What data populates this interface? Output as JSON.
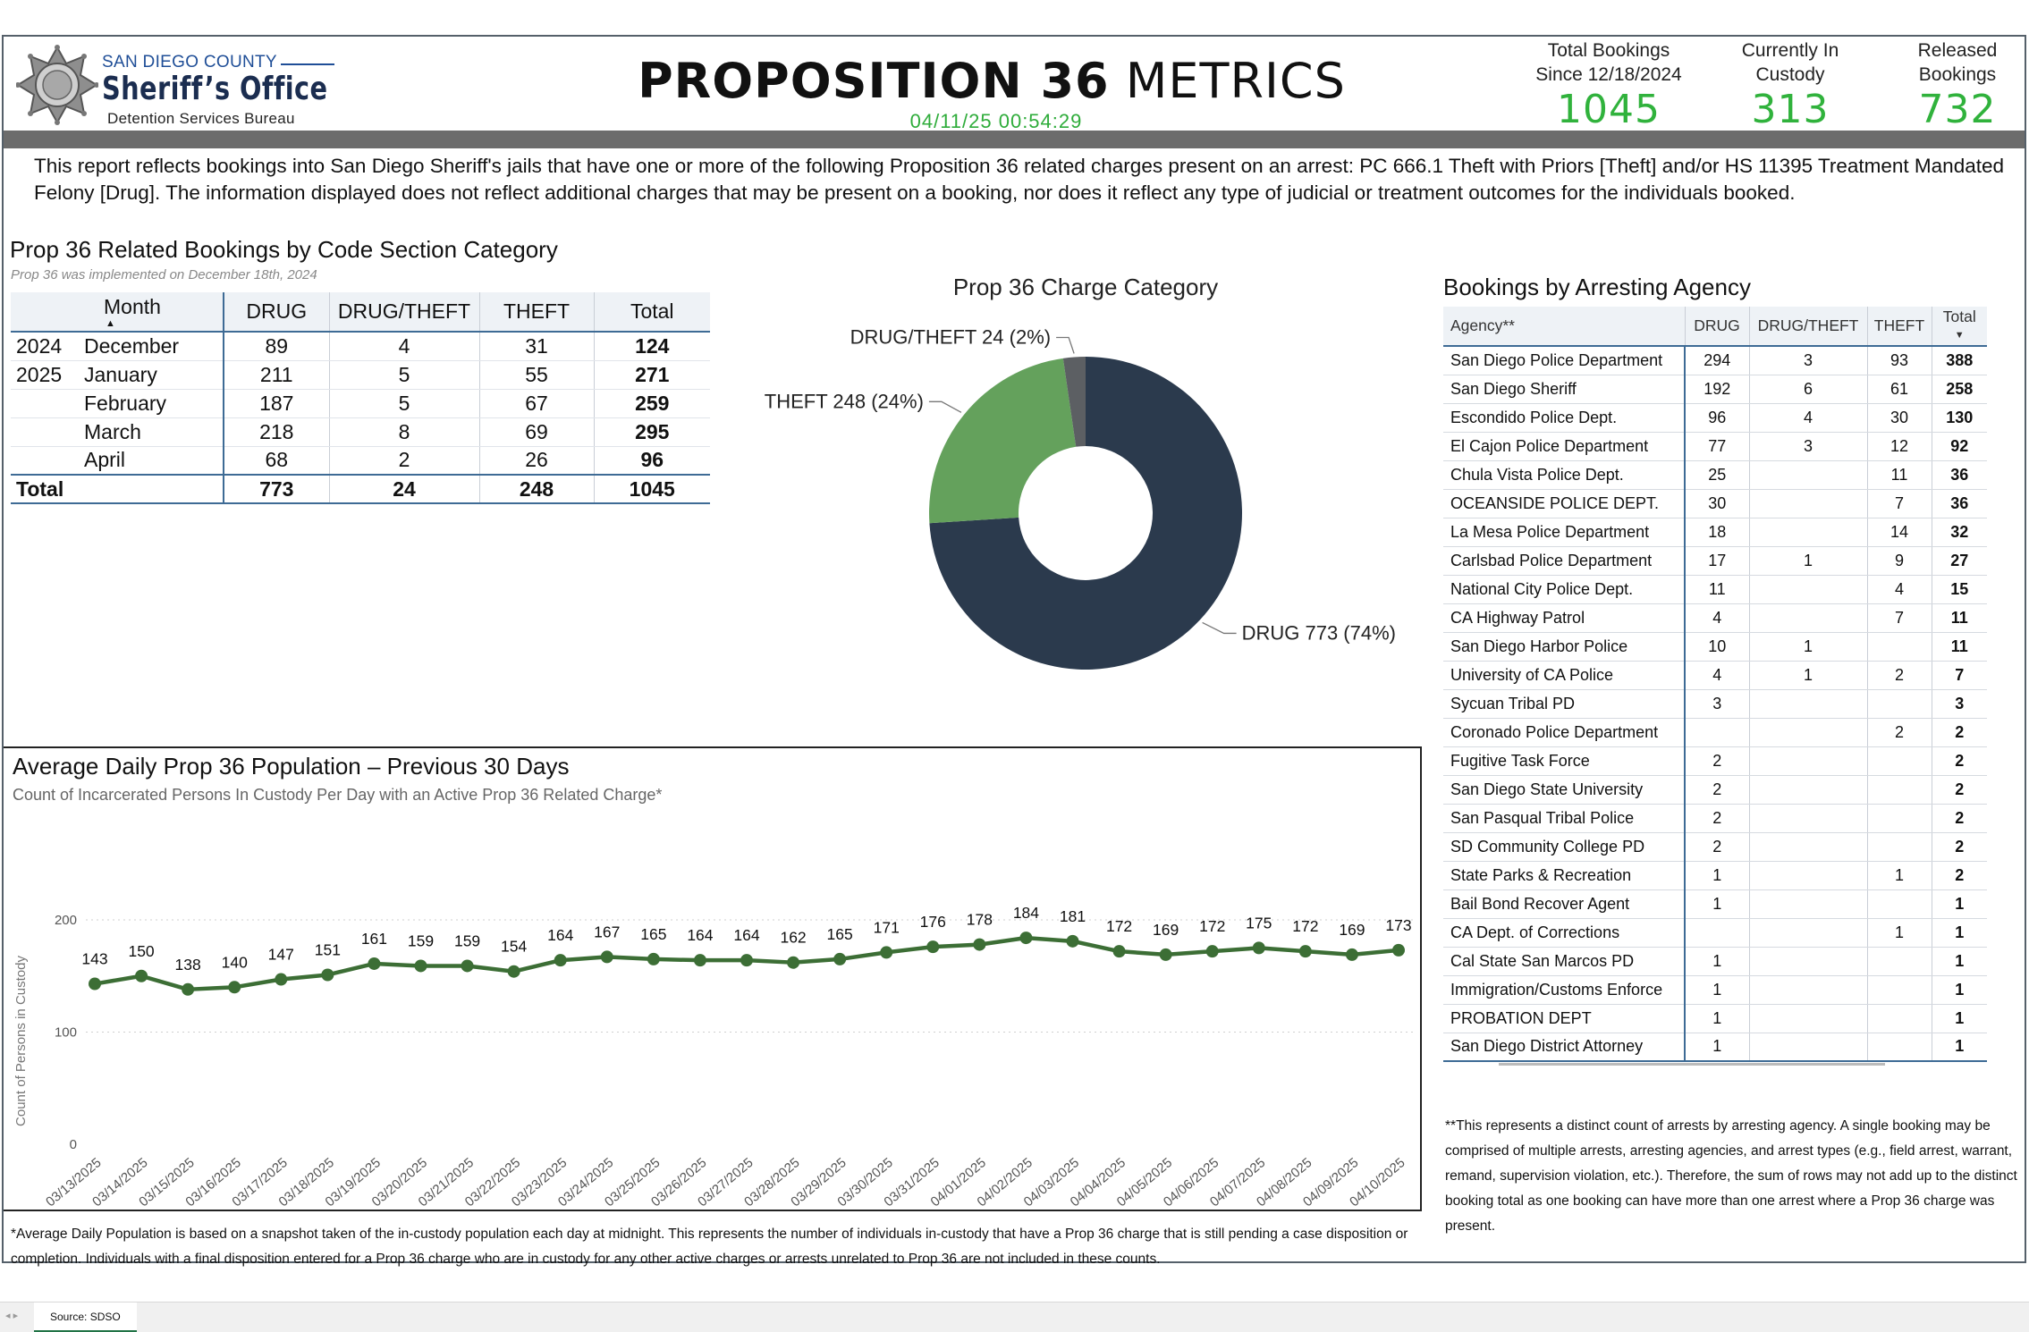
{
  "header": {
    "county": "SAN DIEGO COUNTY",
    "org": "Sheriff’s Office",
    "bureau": "Detention Services Bureau",
    "title_bold": "PROPOSITION 36",
    "title_thin": " METRICS",
    "timestamp": "04/11/25 00:54:29",
    "kpis": {
      "total_label_1": "Total Bookings",
      "total_label_2": "Since 12/18/2024",
      "total_value": "1045",
      "custody_label_1": "Currently In",
      "custody_label_2": "Custody",
      "custody_value": "313",
      "released_label_1": "Released",
      "released_label_2": "Bookings",
      "released_value": "732"
    },
    "accent_green": "#30b23c"
  },
  "intro": "This report reflects bookings into San Diego Sheriff's jails that have one or more of the following Proposition 36 related charges present on an arrest: PC 666.1 Theft with Priors [Theft] and/or HS 11395 Treatment Mandated Felony [Drug]. The information displayed does not reflect additional charges that may be present on a booking, nor does it reflect any type of judicial or treatment outcomes for the individuals booked.",
  "code_table": {
    "title": "Prop 36 Related Bookings by Code Section Category",
    "subtitle": "Prop 36 was implemented on December 18th, 2024",
    "columns": [
      "Month",
      "DRUG",
      "DRUG/THEFT",
      "THEFT",
      "Total"
    ],
    "rows": [
      {
        "year": "2024",
        "month": "December",
        "drug": "89",
        "drug_theft": "4",
        "theft": "31",
        "total": "124"
      },
      {
        "year": "2025",
        "month": "January",
        "drug": "211",
        "drug_theft": "5",
        "theft": "55",
        "total": "271"
      },
      {
        "year": "",
        "month": "February",
        "drug": "187",
        "drug_theft": "5",
        "theft": "67",
        "total": "259"
      },
      {
        "year": "",
        "month": "March",
        "drug": "218",
        "drug_theft": "8",
        "theft": "69",
        "total": "295"
      },
      {
        "year": "",
        "month": "April",
        "drug": "68",
        "drug_theft": "2",
        "theft": "26",
        "total": "96"
      }
    ],
    "total_row": {
      "label": "Total",
      "drug": "773",
      "drug_theft": "24",
      "theft": "248",
      "total": "1045"
    }
  },
  "agency_table": {
    "title": "Bookings by Arresting Agency",
    "columns": [
      "Agency**",
      "DRUG",
      "DRUG/THEFT",
      "THEFT",
      "Total"
    ],
    "rows": [
      {
        "agency": "San Diego Police Department",
        "drug": "294",
        "drug_theft": "3",
        "theft": "93",
        "total": "388"
      },
      {
        "agency": "San Diego Sheriff",
        "drug": "192",
        "drug_theft": "6",
        "theft": "61",
        "total": "258"
      },
      {
        "agency": "Escondido Police Dept.",
        "drug": "96",
        "drug_theft": "4",
        "theft": "30",
        "total": "130"
      },
      {
        "agency": "El Cajon Police Department",
        "drug": "77",
        "drug_theft": "3",
        "theft": "12",
        "total": "92"
      },
      {
        "agency": "Chula Vista Police Dept.",
        "drug": "25",
        "drug_theft": "",
        "theft": "11",
        "total": "36"
      },
      {
        "agency": "OCEANSIDE POLICE DEPT.",
        "drug": "30",
        "drug_theft": "",
        "theft": "7",
        "total": "36"
      },
      {
        "agency": "La Mesa Police Department",
        "drug": "18",
        "drug_theft": "",
        "theft": "14",
        "total": "32"
      },
      {
        "agency": "Carlsbad Police Department",
        "drug": "17",
        "drug_theft": "1",
        "theft": "9",
        "total": "27"
      },
      {
        "agency": "National City Police Dept.",
        "drug": "11",
        "drug_theft": "",
        "theft": "4",
        "total": "15"
      },
      {
        "agency": "CA Highway Patrol",
        "drug": "4",
        "drug_theft": "",
        "theft": "7",
        "total": "11"
      },
      {
        "agency": "San Diego Harbor Police",
        "drug": "10",
        "drug_theft": "1",
        "theft": "",
        "total": "11"
      },
      {
        "agency": "University of CA Police",
        "drug": "4",
        "drug_theft": "1",
        "theft": "2",
        "total": "7"
      },
      {
        "agency": "Sycuan Tribal PD",
        "drug": "3",
        "drug_theft": "",
        "theft": "",
        "total": "3"
      },
      {
        "agency": "Coronado Police Department",
        "drug": "",
        "drug_theft": "",
        "theft": "2",
        "total": "2"
      },
      {
        "agency": "Fugitive Task Force",
        "drug": "2",
        "drug_theft": "",
        "theft": "",
        "total": "2"
      },
      {
        "agency": "San Diego State University",
        "drug": "2",
        "drug_theft": "",
        "theft": "",
        "total": "2"
      },
      {
        "agency": "San Pasqual Tribal Police",
        "drug": "2",
        "drug_theft": "",
        "theft": "",
        "total": "2"
      },
      {
        "agency": "SD Community College PD",
        "drug": "2",
        "drug_theft": "",
        "theft": "",
        "total": "2"
      },
      {
        "agency": "State Parks & Recreation",
        "drug": "1",
        "drug_theft": "",
        "theft": "1",
        "total": "2"
      },
      {
        "agency": "Bail Bond Recover Agent",
        "drug": "1",
        "drug_theft": "",
        "theft": "",
        "total": "1"
      },
      {
        "agency": "CA Dept. of Corrections",
        "drug": "",
        "drug_theft": "",
        "theft": "1",
        "total": "1"
      },
      {
        "agency": "Cal State San Marcos PD",
        "drug": "1",
        "drug_theft": "",
        "theft": "",
        "total": "1"
      },
      {
        "agency": "Immigration/Customs Enforce",
        "drug": "1",
        "drug_theft": "",
        "theft": "",
        "total": "1"
      },
      {
        "agency": "PROBATION DEPT",
        "drug": "1",
        "drug_theft": "",
        "theft": "",
        "total": "1"
      },
      {
        "agency": "San Diego District Attorney",
        "drug": "1",
        "drug_theft": "",
        "theft": "",
        "total": "1"
      }
    ],
    "note": "**This represents a distinct count of arrests by arresting agency. A single booking may be comprised of multiple arrests, arresting agencies, and arrest types (e.g., field arrest, warrant, remand, supervision violation, etc.). Therefore, the sum of rows may not add up to the distinct booking total as one booking can have more than one arrest where a Prop 36 charge was present."
  },
  "line_note": "*Average Daily Population is based on a snapshot taken of the in-custody population each day at midnight. This represents the number of individuals in-custody that have a Prop 36 charge that is still pending a case disposition or completion. Individuals with a final disposition entered for a Prop 36 charge who are in custody for any other active charges or arrests unrelated to Prop 36 are not included in these counts.",
  "tabbar": {
    "nav": "◂ ▸",
    "source_tab": "Source: SDSO"
  },
  "chart_data": [
    {
      "type": "pie",
      "variant": "donut",
      "title": "Prop 36 Charge Category",
      "slices": [
        {
          "label": "DRUG",
          "value": 773,
          "display": "DRUG 773 (74%)",
          "color": "#2b3a4d"
        },
        {
          "label": "THEFT",
          "value": 248,
          "display": "THEFT 248 (24%)",
          "color": "#64a15c"
        },
        {
          "label": "DRUG/THEFT",
          "value": 24,
          "display": "DRUG/THEFT 24 (2%)",
          "color": "#5c5f63"
        }
      ]
    },
    {
      "type": "line",
      "title": "Average Daily Prop 36 Population – Previous 30 Days",
      "subtitle": "Count of Incarcerated Persons In Custody Per Day with an Active Prop 36 Related Charge*",
      "xlabel": "",
      "ylabel": "Count of Persons in Custody",
      "ylim": [
        0,
        200
      ],
      "yticks": [
        "0",
        "100",
        "200"
      ],
      "grid": true,
      "color": "#3c6e35",
      "x": [
        "03/13/2025",
        "03/14/2025",
        "03/15/2025",
        "03/16/2025",
        "03/17/2025",
        "03/18/2025",
        "03/19/2025",
        "03/20/2025",
        "03/21/2025",
        "03/22/2025",
        "03/23/2025",
        "03/24/2025",
        "03/25/2025",
        "03/26/2025",
        "03/27/2025",
        "03/28/2025",
        "03/29/2025",
        "03/30/2025",
        "03/31/2025",
        "04/01/2025",
        "04/02/2025",
        "04/03/2025",
        "04/04/2025",
        "04/05/2025",
        "04/06/2025",
        "04/07/2025",
        "04/08/2025",
        "04/09/2025",
        "04/10/2025"
      ],
      "y": [
        143,
        150,
        138,
        140,
        147,
        151,
        161,
        159,
        159,
        154,
        164,
        167,
        165,
        164,
        164,
        162,
        165,
        171,
        176,
        178,
        184,
        181,
        172,
        169,
        172,
        175,
        172,
        169,
        173
      ]
    }
  ]
}
